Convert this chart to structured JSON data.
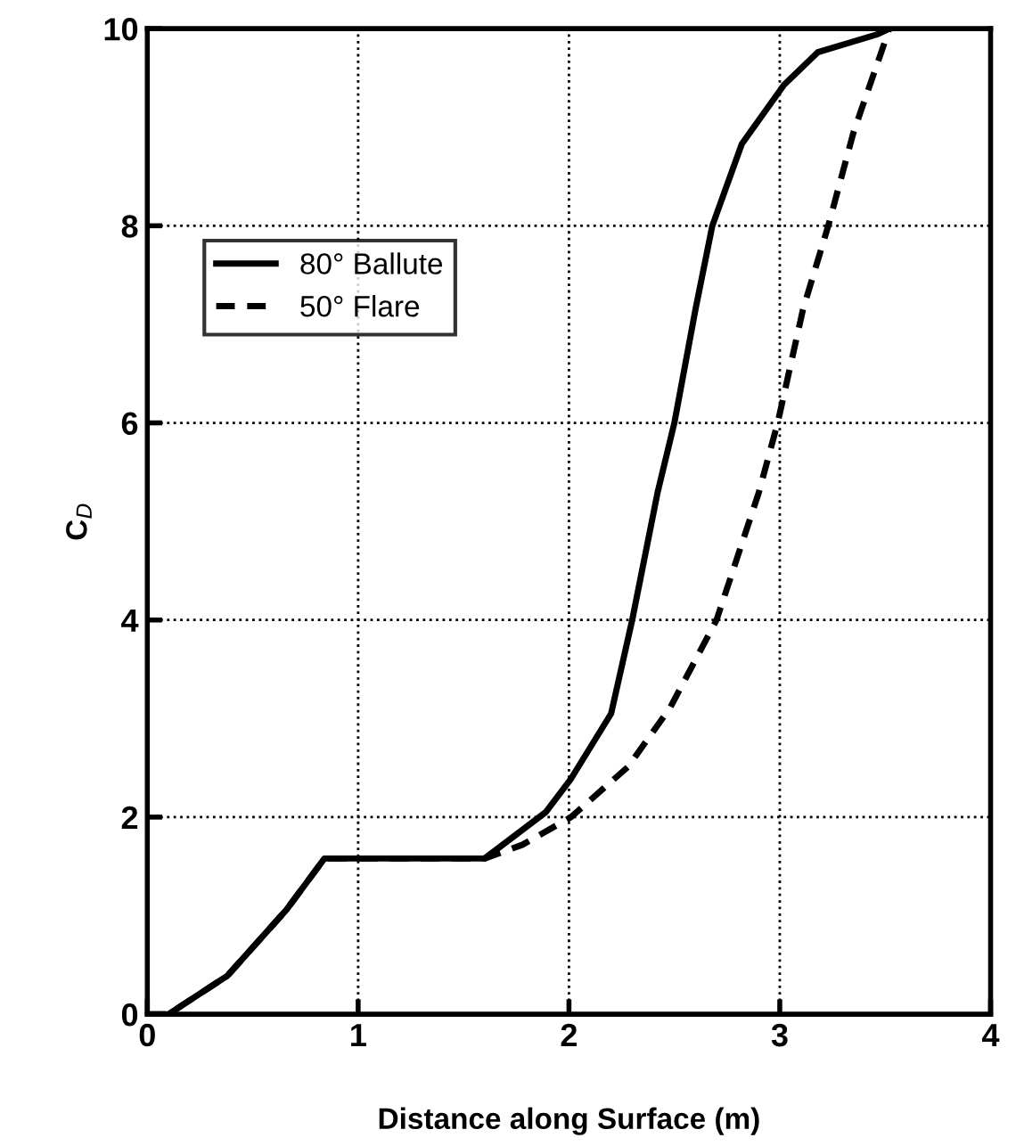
{
  "chart_data": {
    "type": "line",
    "xlabel": "Distance along Surface (m)",
    "ylabel": "C$_{D}$",
    "series": [
      {
        "name": "80° Ballute",
        "color": "#000000",
        "line_style": "solid",
        "x": [
          0,
          0.1,
          0.38,
          0.66,
          0.84,
          1.6,
          1.89,
          2.01,
          2.2,
          2.3,
          2.42,
          2.5,
          2.6,
          2.68,
          2.82,
          3.02,
          3.18,
          3.46,
          3.52
        ],
        "values": [
          0,
          0,
          0.39,
          1.06,
          1.58,
          1.58,
          2.05,
          2.39,
          3.05,
          4.0,
          5.29,
          6.0,
          7.15,
          8.0,
          8.83,
          9.43,
          9.76,
          9.94,
          10
        ]
      },
      {
        "name": "50° Flare",
        "color": "#000000",
        "line_style": "dashed",
        "x": [
          0,
          0.1,
          0.38,
          0.66,
          0.84,
          1.6,
          1.78,
          2.01,
          2.28,
          2.48,
          2.7,
          2.9,
          2.99,
          3.11,
          3.23,
          3.35,
          3.52
        ],
        "values": [
          0,
          0,
          0.39,
          1.06,
          1.58,
          1.58,
          1.72,
          2.0,
          2.51,
          3.11,
          4.0,
          5.29,
          6.0,
          7.15,
          8.0,
          8.95,
          10
        ]
      }
    ],
    "xlim": [
      0,
      4
    ],
    "ylim": [
      0,
      10
    ],
    "xticks": [
      0,
      1,
      2,
      3,
      4
    ],
    "yticks": [
      0,
      2,
      4,
      6,
      8,
      10
    ],
    "grid": true,
    "legend": "top left",
    "marker": "none"
  }
}
